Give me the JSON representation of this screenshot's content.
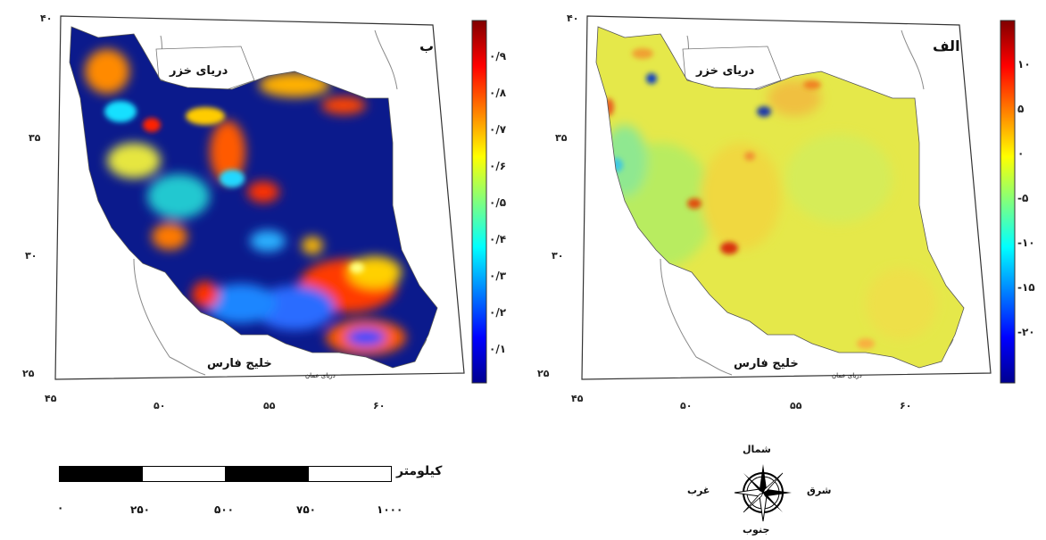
{
  "panels": [
    {
      "id": "b",
      "letter": "ب",
      "caspian_label": "دریای خزر",
      "gulf_label": "خلیج فارس",
      "oman_label": "دریای عمان",
      "lat_ticks": [
        "۴۰",
        "۳۵",
        "۳۰",
        "۲۵"
      ],
      "lon_ticks": [
        "۴۵",
        "۵۰",
        "۵۵",
        "۶۰"
      ],
      "colorbar_ticks": [
        "۰/۹",
        "۰/۸",
        "۰/۷",
        "۰/۶",
        "۰/۵",
        "۰/۴",
        "۰/۳",
        "۰/۲",
        "۰/۱"
      ],
      "colorbar_range": [
        0,
        1
      ],
      "dominant_color": "#0b1a8c"
    },
    {
      "id": "alef",
      "letter": "الف",
      "caspian_label": "دریای خزر",
      "gulf_label": "خلیج فارس",
      "oman_label": "دریای عمان",
      "lat_ticks": [
        "۴۰",
        "۳۵",
        "۳۰",
        "۲۵"
      ],
      "lon_ticks": [
        "۴۵",
        "۵۰",
        "۵۵",
        "۶۰"
      ],
      "colorbar_ticks": [
        "۱۰",
        "۵",
        "۰",
        "-۵",
        "-۱۰",
        "-۱۵",
        "-۲۰"
      ],
      "colorbar_range": [
        -20,
        12
      ],
      "dominant_color": "#e5e84a"
    }
  ],
  "scale_bar": {
    "unit": "کیلومتر",
    "labels": [
      "۰",
      "۲۵۰",
      "۵۰۰",
      "۷۵۰",
      "۱۰۰۰"
    ]
  },
  "compass": {
    "north": "شمال",
    "south": "جنوب",
    "east": "شرق",
    "west": "غرب"
  },
  "colors": {
    "jet_low": "#00008f",
    "jet_high": "#800000"
  }
}
